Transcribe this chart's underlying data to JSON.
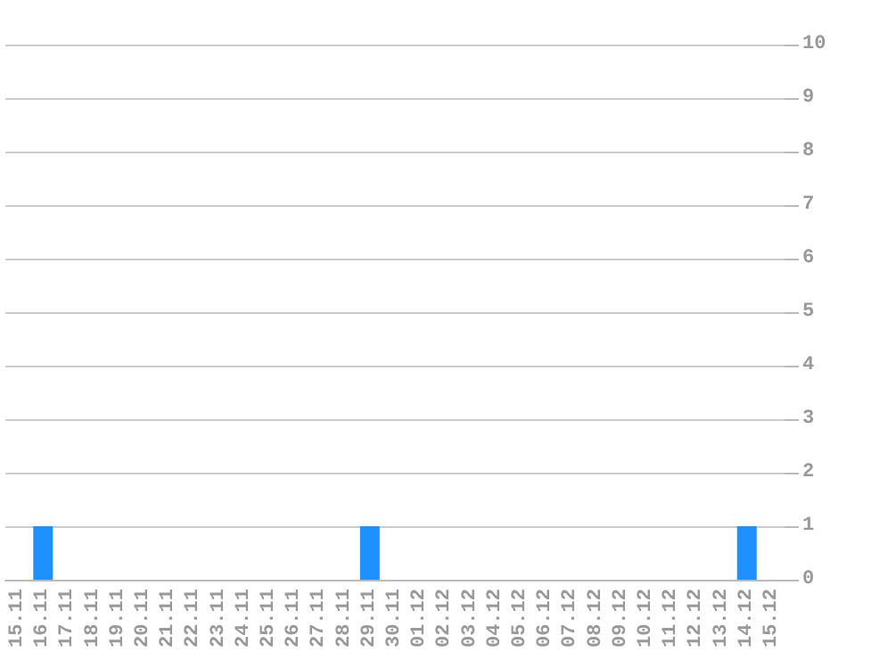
{
  "chart_data": {
    "type": "bar",
    "categories": [
      "15.11",
      "16.11",
      "17.11",
      "18.11",
      "19.11",
      "20.11",
      "21.11",
      "22.11",
      "23.11",
      "24.11",
      "25.11",
      "26.11",
      "27.11",
      "28.11",
      "29.11",
      "30.11",
      "01.12",
      "02.12",
      "03.12",
      "04.12",
      "05.12",
      "06.12",
      "07.12",
      "08.12",
      "09.12",
      "10.12",
      "11.12",
      "12.12",
      "13.12",
      "14.12",
      "15.12"
    ],
    "values": [
      0,
      1,
      0,
      0,
      0,
      0,
      0,
      0,
      0,
      0,
      0,
      0,
      0,
      0,
      1,
      0,
      0,
      0,
      0,
      0,
      0,
      0,
      0,
      0,
      0,
      0,
      0,
      0,
      0,
      1,
      0
    ],
    "color": "#1e90ff",
    "ylim": [
      0,
      10
    ],
    "yticks": [
      0,
      1,
      2,
      3,
      4,
      5,
      6,
      7,
      8,
      9,
      10
    ],
    "grid": "y"
  }
}
